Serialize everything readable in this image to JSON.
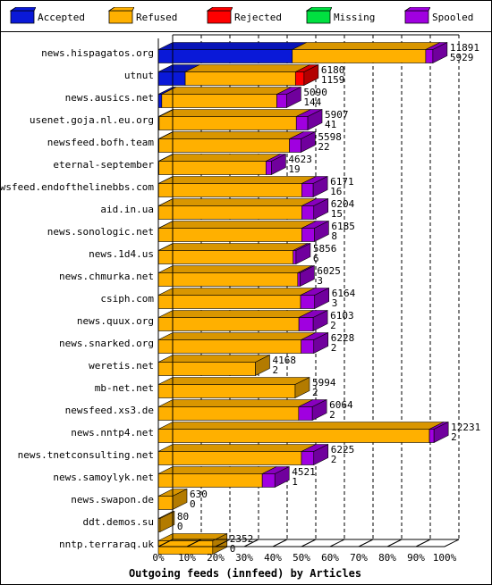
{
  "colors": {
    "Accepted": "#0a19d8",
    "Refused": "#ffb000",
    "Rejected": "#ff0000",
    "Missing": "#00e040",
    "Spooled": "#a000e0"
  },
  "chart_data": {
    "type": "bar",
    "orientation": "horizontal",
    "stacked": true,
    "xlabel": "Outgoing feeds (innfeed) by Articles",
    "x_ticks": [
      "0%",
      "10%",
      "20%",
      "30%",
      "40%",
      "50%",
      "60%",
      "70%",
      "80%",
      "90%",
      "100%"
    ],
    "xlim": [
      0,
      100
    ],
    "legend_position": "top",
    "grid": true,
    "series_names": [
      "Accepted",
      "Refused",
      "Rejected",
      "Missing",
      "Spooled"
    ],
    "categories": [
      "news.hispagatos.org",
      "utnut",
      "news.ausics.net",
      "usenet.goja.nl.eu.org",
      "newsfeed.bofh.team",
      "eternal-september",
      "newsfeed.endofthelinebbs.com",
      "aid.in.ua",
      "news.sonologic.net",
      "news.1d4.us",
      "news.chmurka.net",
      "csiph.com",
      "news.quux.org",
      "news.snarked.org",
      "weretis.net",
      "mb-net.net",
      "newsfeed.xs3.de",
      "news.nntp4.net",
      "news.tnetconsulting.net",
      "news.samoylyk.net",
      "news.swapon.de",
      "ddt.demos.su",
      "nntp.terraraq.uk"
    ],
    "offered_labels": [
      "11891",
      "6180",
      "5090",
      "5907",
      "5598",
      "4623",
      "6171",
      "6204",
      "6185",
      "5856",
      "6025",
      "6164",
      "6103",
      "6228",
      "4168",
      "5994",
      "6064",
      "12231",
      "6225",
      "4521",
      "630",
      "80",
      "2352"
    ],
    "accepted_labels": [
      "5929",
      "1159",
      "144",
      "41",
      "22",
      "19",
      "16",
      "15",
      "8",
      "6",
      "3",
      "3",
      "2",
      "2",
      "2",
      "2",
      "2",
      "2",
      "2",
      "1",
      "0",
      "0",
      "0"
    ],
    "series": [
      {
        "name": "Accepted",
        "values": [
          46.8,
          9.4,
          1.2,
          0.3,
          0.2,
          0.2,
          0.1,
          0.1,
          0.1,
          0.1,
          0.0,
          0.0,
          0.0,
          0.0,
          0.0,
          0.0,
          0.0,
          0.0,
          0.0,
          0.0,
          0.0,
          0.0,
          0.0
        ]
      },
      {
        "name": "Refused",
        "values": [
          46.6,
          38.5,
          40.2,
          47.9,
          45.6,
          37.4,
          50.0,
          50.0,
          50.0,
          47.0,
          48.7,
          49.7,
          49.1,
          49.9,
          33.9,
          47.8,
          49.0,
          94.7,
          50.0,
          36.3,
          5.0,
          0.6,
          19.0
        ]
      },
      {
        "name": "Rejected",
        "values": [
          0,
          3.0,
          0,
          0,
          0,
          0,
          0,
          0,
          0,
          0,
          0,
          0,
          0,
          0,
          0,
          0,
          0,
          0,
          0,
          0,
          0,
          0,
          0
        ]
      },
      {
        "name": "Missing",
        "values": [
          0,
          0,
          0,
          0,
          0,
          0,
          0,
          0,
          0,
          0,
          0,
          0,
          0,
          0,
          0,
          0,
          0,
          0,
          0,
          0,
          0,
          0,
          0
        ]
      },
      {
        "name": "Spooled",
        "values": [
          2.5,
          0,
          3.4,
          4.0,
          4.0,
          1.9,
          4.0,
          4.2,
          4.4,
          1.0,
          0.8,
          4.9,
          5.0,
          4.4,
          0,
          0,
          4.8,
          1.6,
          4.3,
          4.4,
          0,
          0,
          0
        ]
      }
    ]
  }
}
